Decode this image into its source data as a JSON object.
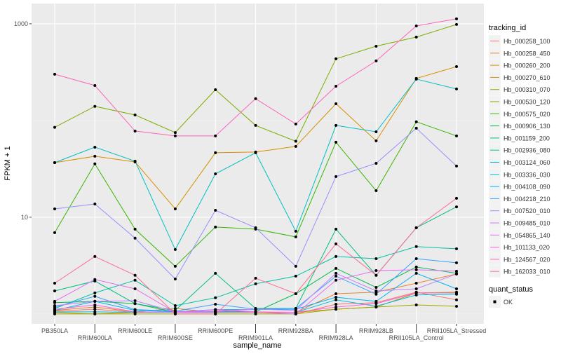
{
  "chart_data": {
    "type": "line",
    "xlabel": "sample_name",
    "ylabel": "FPKM + 1",
    "y_scale": "log10",
    "ylim": [
      0.79,
      1620
    ],
    "y_ticks": [
      10,
      1000
    ],
    "y_tick_labels": [
      "10",
      "1000"
    ],
    "grid": true,
    "legend_position": "right",
    "categories": [
      "PB350LA",
      "RRIM600LA",
      "RRIM600LE",
      "RRIM600SE",
      "RRIM600PE",
      "RRIM901LA",
      "RRIM928BA",
      "RRIM928LA",
      "RRIM928LB",
      "RRII105LA_Control",
      "RRII105LA_Stressed"
    ],
    "legend_title": "tracking_id",
    "shape_legend_title": "quant_status",
    "shape_legend_items": [
      "OK"
    ],
    "series": [
      {
        "name": "Hb_000258_100",
        "color": "#F8766D",
        "values": [
          1.07,
          1.12,
          1.04,
          1.04,
          1.04,
          1.04,
          1.0,
          1.26,
          1.31,
          1.68,
          1.4
        ]
      },
      {
        "name": "Hb_000258_450",
        "color": "#EA8331",
        "values": [
          1.09,
          1.18,
          1.05,
          1.14,
          1.04,
          1.05,
          1.04,
          1.62,
          1.68,
          2.08,
          2.59
        ]
      },
      {
        "name": "Hb_000260_200",
        "color": "#D89000",
        "values": [
          36.7,
          42.7,
          37.3,
          12.2,
          46.4,
          47.2,
          54,
          149,
          61.6,
          272,
          361
        ]
      },
      {
        "name": "Hb_000270_610",
        "color": "#C09B00",
        "values": [
          1.04,
          1.0,
          1.04,
          1.04,
          1.04,
          1.04,
          1.04,
          1.12,
          1.18,
          1.65,
          1.68
        ]
      },
      {
        "name": "Hb_000310_070",
        "color": "#A3A500",
        "values": [
          1.0,
          1.0,
          1.0,
          1.0,
          1.0,
          1.0,
          1.0,
          1.12,
          1.18,
          1.24,
          1.2
        ]
      },
      {
        "name": "Hb_000530_120",
        "color": "#7CAE00",
        "values": [
          85,
          140,
          114,
          75,
          208,
          89,
          61,
          434,
          586,
          728,
          984
        ]
      },
      {
        "name": "Hb_000575_020",
        "color": "#39B600",
        "values": [
          6.93,
          35.6,
          7.53,
          3.11,
          7.92,
          7.53,
          6.27,
          59.6,
          18.8,
          97,
          69.3
        ]
      },
      {
        "name": "Hb_000906_130",
        "color": "#00BB4E",
        "values": [
          1.31,
          1.35,
          1.28,
          1.04,
          1.07,
          1.05,
          1.62,
          2.96,
          1.88,
          3.06,
          2.63
        ]
      },
      {
        "name": "Hb_001159_200",
        "color": "#00BF7D",
        "values": [
          1.73,
          2.19,
          1.28,
          1.09,
          2.63,
          1.14,
          1.14,
          7.53,
          2.51,
          7.78,
          12.8
        ]
      },
      {
        "name": "Hb_002936_080",
        "color": "#00C1A3",
        "values": [
          1.14,
          1.65,
          2.23,
          1.22,
          1.47,
          2.05,
          2.46,
          3.93,
          3.73,
          4.97,
          4.72
        ]
      },
      {
        "name": "Hb_003124_060",
        "color": "#00BFC4",
        "values": [
          36.7,
          53,
          38,
          4.64,
          28.1,
          46.4,
          7.16,
          89,
          76.5,
          268,
          212
        ]
      },
      {
        "name": "Hb_003336_030",
        "color": "#00BAE0",
        "values": [
          1.05,
          1.05,
          1.04,
          1.04,
          1.04,
          1.04,
          1.04,
          1.4,
          1.2,
          1.57,
          1.6
        ]
      },
      {
        "name": "Hb_004108_090",
        "color": "#00B0F6",
        "values": [
          1.09,
          1.35,
          1.09,
          1.05,
          1.11,
          1.11,
          1.12,
          1.49,
          1.35,
          2.63,
          1.82
        ]
      },
      {
        "name": "Hb_004218_210",
        "color": "#35A2FF",
        "values": [
          1.18,
          1.52,
          1.11,
          1.07,
          1.26,
          1.12,
          1.14,
          2.46,
          1.6,
          3.73,
          3.38
        ]
      },
      {
        "name": "Hb_007520_010",
        "color": "#9590FF",
        "values": [
          12.2,
          13.7,
          6.07,
          2.3,
          11.8,
          7.78,
          3.11,
          26.3,
          36.1,
          83.2,
          33.8
        ]
      },
      {
        "name": "Hb_009485_010",
        "color": "#C77CFF",
        "values": [
          1.22,
          1.35,
          1.37,
          1.05,
          1.07,
          1.12,
          1.09,
          2.63,
          1.73,
          1.82,
          2.59
        ]
      },
      {
        "name": "Hb_054865_140",
        "color": "#E76BF3",
        "values": [
          1.35,
          2.27,
          1.82,
          1.04,
          1.11,
          1.05,
          1.0,
          2.23,
          2.81,
          2.86,
          2.77
        ]
      },
      {
        "name": "Hb_101133_020",
        "color": "#FA62DB",
        "values": [
          1.12,
          1.24,
          1.05,
          1.04,
          1.05,
          1.04,
          1.04,
          1.18,
          1.28,
          1.65,
          1.65
        ]
      },
      {
        "name": "Hb_124567_020",
        "color": "#FF62BC",
        "values": [
          301,
          230,
          77.8,
          69.3,
          69.3,
          168,
          92,
          226,
          413,
          950,
          1125
        ]
      },
      {
        "name": "Hb_162033_010",
        "color": "#FF6C91",
        "values": [
          2.08,
          3.93,
          2.51,
          1.0,
          1.0,
          2.34,
          1.62,
          5.31,
          2.51,
          7.78,
          15.7
        ]
      }
    ]
  }
}
